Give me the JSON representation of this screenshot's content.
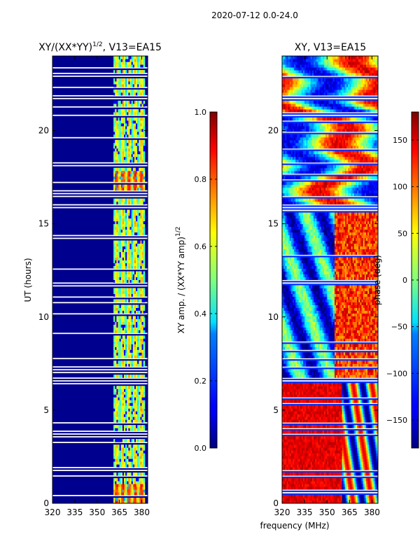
{
  "suptitle": "2020-07-12 0.0-24.0",
  "shared_xlabel": "frequency (MHz)",
  "chart_data": [
    {
      "type": "heatmap",
      "title_main": "XY/(XX*YY)",
      "title_sup": "1/2",
      "title_tail": ", V13=EA15",
      "xlabel": "",
      "ylabel": "UT (hours)",
      "xlim": [
        320,
        384
      ],
      "ylim": [
        0,
        24
      ],
      "xticks": [
        320,
        335,
        350,
        365,
        380
      ],
      "yticks": [
        0,
        5,
        10,
        15,
        20
      ],
      "colormap": "jet",
      "active_band_mhz": [
        361,
        382
      ],
      "blank_rows_ut": [
        1.4,
        1.7,
        6.6,
        6.7,
        15.9,
        16.0,
        21.7,
        21.8,
        20.8,
        18.2
      ],
      "colorbar": {
        "label_main": "XY amp. / (XX*YY amp)",
        "label_sup": "1/2",
        "range": [
          0.0,
          1.0
        ],
        "ticks": [
          "0.0",
          "0.2",
          "0.4",
          "0.6",
          "0.8",
          "1.0"
        ],
        "tick_values": [
          0.0,
          0.2,
          0.4,
          0.6,
          0.8,
          1.0
        ]
      }
    },
    {
      "type": "heatmap",
      "title_main": "XY, V13=EA15",
      "xlabel": "",
      "ylabel": "",
      "xlim": [
        320,
        384
      ],
      "ylim": [
        0,
        24
      ],
      "xticks": [
        320,
        335,
        350,
        365,
        380
      ],
      "yticks": [
        0,
        5,
        10,
        15,
        20
      ],
      "colormap": "jet",
      "blank_rows_ut": [
        1.4,
        1.7,
        6.6,
        6.7,
        15.9,
        16.0,
        21.7,
        21.8,
        20.8,
        18.2
      ],
      "colorbar": {
        "label": "phase (deg)",
        "range": [
          -180,
          180
        ],
        "ticks": [
          "150",
          "100",
          "50",
          "0",
          "−50",
          "−100",
          "−150"
        ],
        "tick_values": [
          150,
          100,
          50,
          0,
          -50,
          -100,
          -150
        ]
      }
    }
  ]
}
